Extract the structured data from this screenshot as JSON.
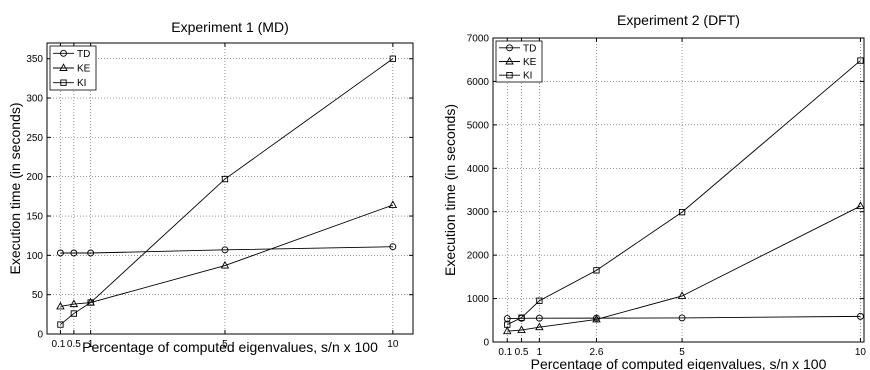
{
  "chart_data": [
    {
      "type": "line",
      "title": "Experiment 1 (MD)",
      "xlabel": "Percentage of computed eigenvalues, s/n x 100",
      "ylabel": "Execution time (in seconds)",
      "xlim": [
        -0.3,
        10.6
      ],
      "ylim": [
        0,
        370
      ],
      "x_ticks": [
        0.1,
        0.5,
        1,
        5,
        10
      ],
      "x_tick_labels": [
        "0.1",
        "0.5",
        "1",
        "5",
        "10"
      ],
      "y_ticks": [
        0,
        50,
        100,
        150,
        200,
        250,
        300,
        350
      ],
      "y_tick_labels": [
        "0",
        "50",
        "100",
        "150",
        "200",
        "250",
        "300",
        "350"
      ],
      "grid": true,
      "legend_position": "top-left",
      "x": [
        0.1,
        0.5,
        1,
        5,
        10
      ],
      "series": [
        {
          "name": "TD",
          "marker": "circle",
          "values": [
            103,
            103,
            103,
            107,
            111
          ]
        },
        {
          "name": "KE",
          "marker": "triangle",
          "values": [
            35,
            38,
            40,
            87,
            164
          ]
        },
        {
          "name": "KI",
          "marker": "square",
          "values": [
            12,
            26,
            40,
            197,
            350
          ]
        }
      ]
    },
    {
      "type": "line",
      "title": "Experiment 2 (DFT)",
      "xlabel": "Percentage of computed eigenvalues, s/n x 100",
      "ylabel": "Execution time (in seconds)",
      "xlim": [
        -0.3,
        10.1
      ],
      "ylim": [
        0,
        7000
      ],
      "x_ticks": [
        0.1,
        0.5,
        1,
        2.6,
        5,
        10
      ],
      "x_tick_labels": [
        "0.1",
        "0.5",
        "1",
        "2.6",
        "5",
        "10"
      ],
      "y_ticks": [
        0,
        1000,
        2000,
        3000,
        4000,
        5000,
        6000,
        7000
      ],
      "y_tick_labels": [
        "0",
        "1000",
        "2000",
        "3000",
        "4000",
        "5000",
        "6000",
        "7000"
      ],
      "grid": true,
      "legend_position": "top-left",
      "x": [
        0.1,
        0.5,
        1,
        2.6,
        5,
        10
      ],
      "series": [
        {
          "name": "TD",
          "marker": "circle",
          "values": [
            540,
            545,
            548,
            550,
            555,
            590
          ]
        },
        {
          "name": "KE",
          "marker": "triangle",
          "values": [
            250,
            275,
            340,
            520,
            1060,
            3130
          ]
        },
        {
          "name": "KI",
          "marker": "square",
          "values": [
            400,
            560,
            950,
            1650,
            2990,
            6480
          ]
        }
      ]
    }
  ]
}
